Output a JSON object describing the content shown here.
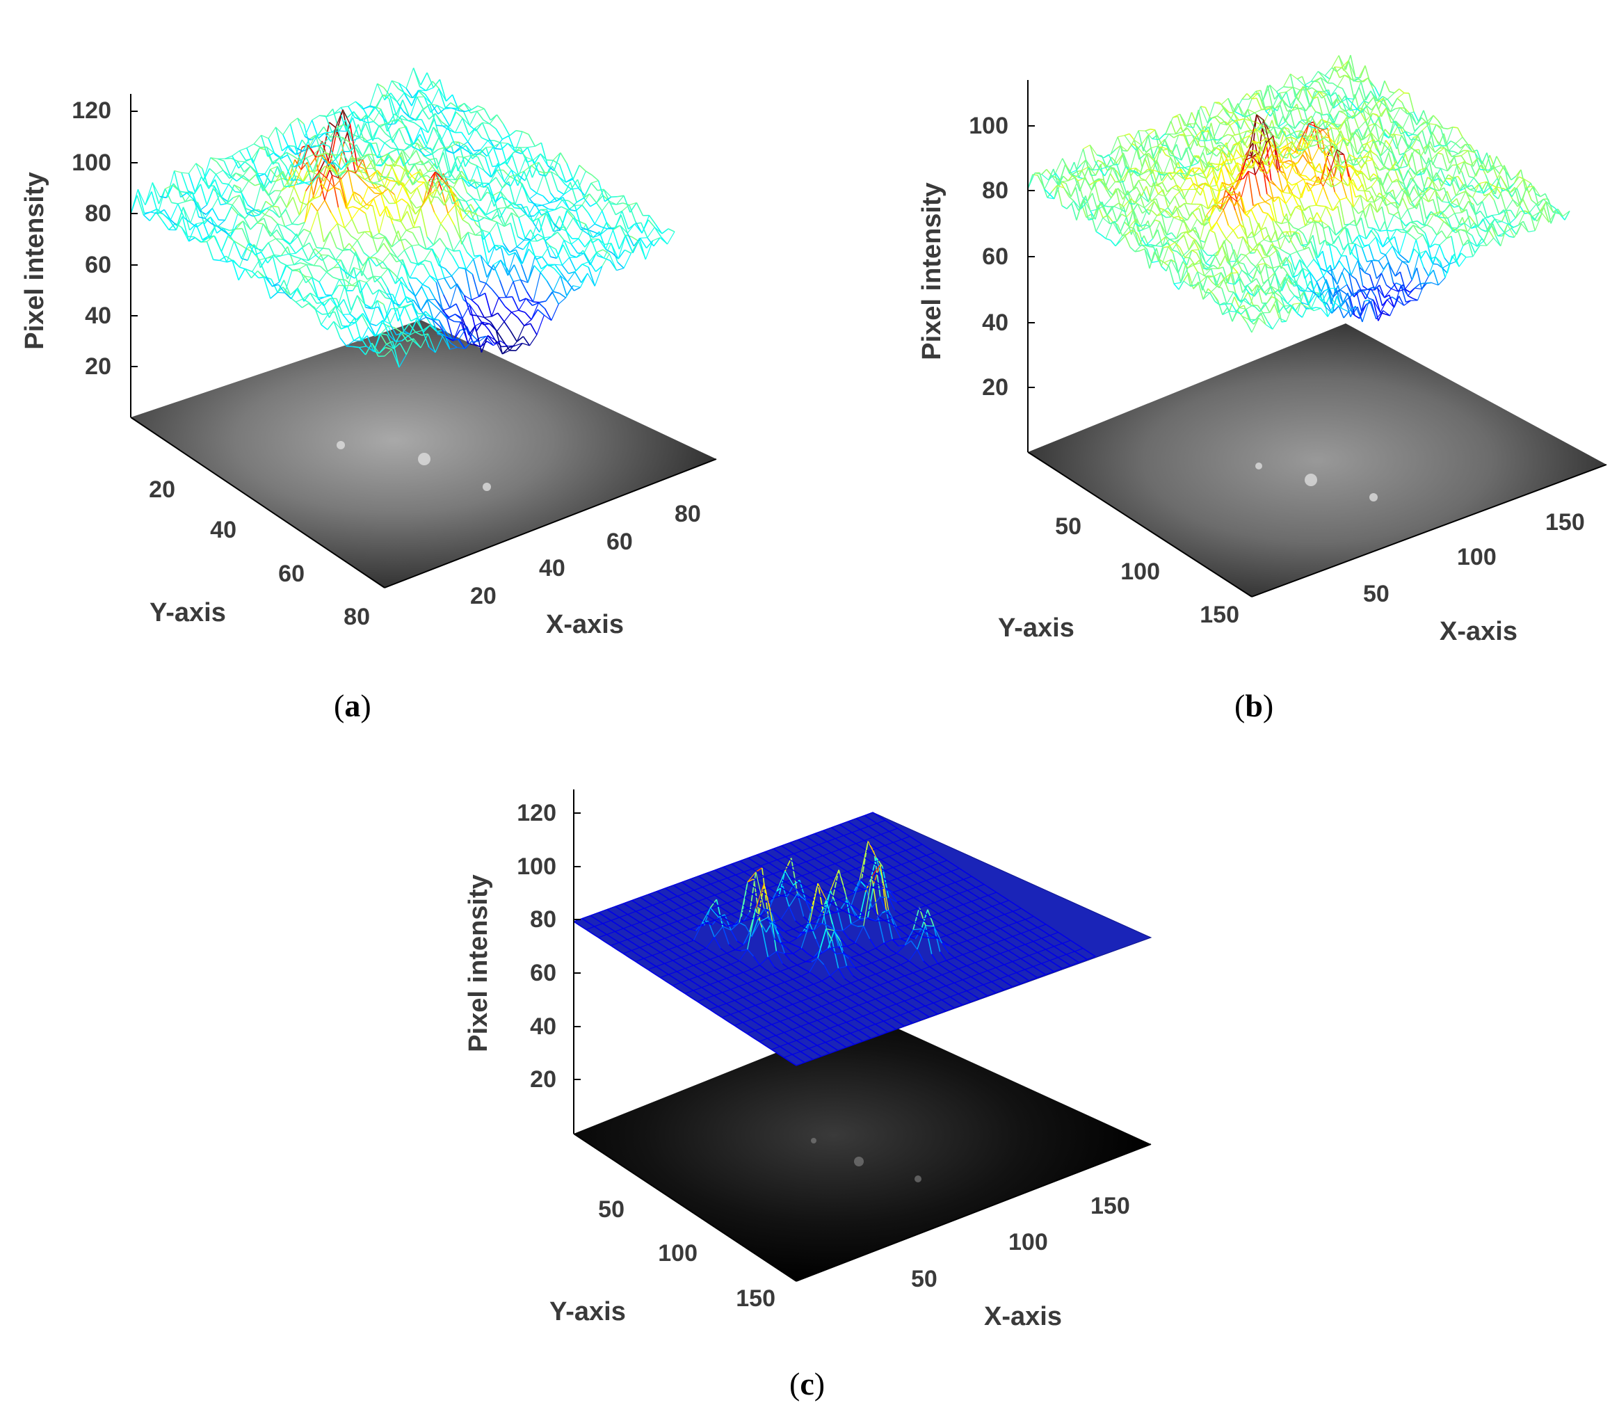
{
  "figure": {
    "panels": [
      {
        "id": "a",
        "caption_letter": "a"
      },
      {
        "id": "b",
        "caption_letter": "b"
      },
      {
        "id": "c",
        "caption_letter": "c"
      }
    ]
  },
  "chart_data": [
    {
      "type": "surface-mesh-3d",
      "panel": "a",
      "zlabel": "Pixel intensity",
      "xlabel": "X-axis",
      "ylabel": "Y-axis",
      "z_ticks": [
        "20",
        "40",
        "60",
        "80",
        "100",
        "120"
      ],
      "x_ticks": [
        "20",
        "40",
        "60",
        "80"
      ],
      "y_ticks": [
        "20",
        "40",
        "60",
        "80"
      ],
      "zlim": [
        0,
        130
      ],
      "xlim": [
        0,
        90
      ],
      "ylim": [
        0,
        80
      ],
      "base_level": 80,
      "peak_max": 120,
      "description": "noisy mesh surface over grayscale image"
    },
    {
      "type": "surface-mesh-3d",
      "panel": "b",
      "zlabel": "Pixel intensity",
      "xlabel": "X-axis",
      "ylabel": "Y-axis",
      "z_ticks": [
        "20",
        "40",
        "60",
        "80",
        "100"
      ],
      "x_ticks": [
        "50",
        "100",
        "150"
      ],
      "y_ticks": [
        "50",
        "100",
        "150"
      ],
      "zlim": [
        0,
        115
      ],
      "xlim": [
        0,
        170
      ],
      "ylim": [
        0,
        160
      ],
      "base_level": 80,
      "peak_max": 115
    },
    {
      "type": "surface-mesh-3d",
      "panel": "c",
      "zlabel": "Pixel intensity",
      "xlabel": "X-axis",
      "ylabel": "Y-axis",
      "z_ticks": [
        "20",
        "40",
        "60",
        "80",
        "100",
        "120"
      ],
      "x_ticks": [
        "50",
        "100",
        "150"
      ],
      "y_ticks": [
        "50",
        "100",
        "150"
      ],
      "zlim": [
        0,
        130
      ],
      "xlim": [
        0,
        170
      ],
      "ylim": [
        0,
        160
      ],
      "base_level": 80,
      "peak_max": 128
    }
  ]
}
